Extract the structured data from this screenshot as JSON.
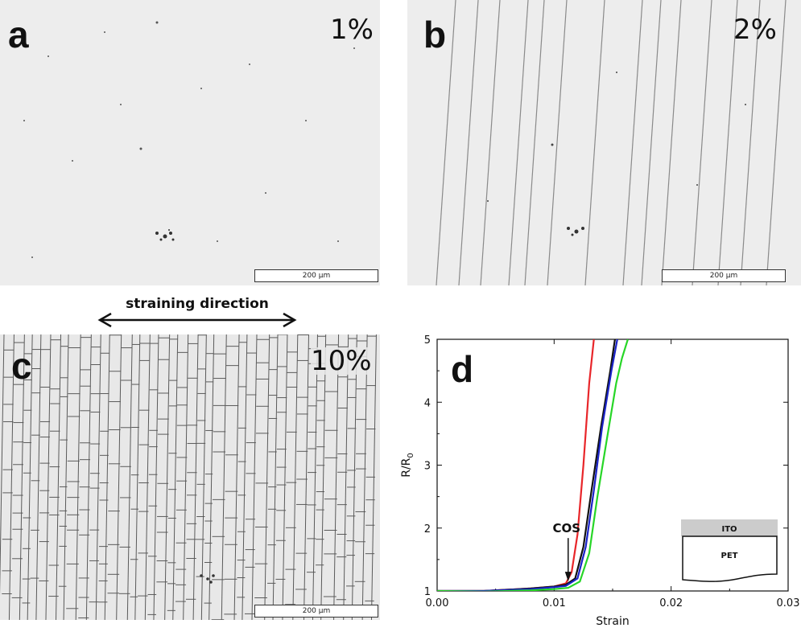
{
  "panels": {
    "a": {
      "letter": "a",
      "strain_label": "1%",
      "scalebar": "200 μm"
    },
    "b": {
      "letter": "b",
      "strain_label": "2%",
      "scalebar": "200 μm"
    },
    "c": {
      "letter": "c",
      "strain_label": "10%",
      "scalebar": "200 μm"
    },
    "d": {
      "letter": "d"
    }
  },
  "straining_direction": "straining direction",
  "inset": {
    "top_layer": "ITO",
    "bottom_layer": "PET"
  },
  "annotation": "COS",
  "colors": {
    "red": "#e8262a",
    "black": "#111111",
    "blue": "#1a23c8",
    "green": "#27d627"
  },
  "chart_data": {
    "type": "line",
    "xlabel": "Strain",
    "ylabel": "R/R",
    "ylabel_subscript": "0",
    "xlim": [
      0,
      0.03
    ],
    "ylim": [
      1,
      5
    ],
    "xticks": [
      "0.00",
      "0.01",
      "0.02",
      "0.03"
    ],
    "yticks": [
      "1",
      "2",
      "3",
      "4",
      "5"
    ],
    "series": [
      {
        "color": "red",
        "x": [
          0,
          0.004,
          0.008,
          0.01,
          0.011,
          0.0115,
          0.012,
          0.0125,
          0.013,
          0.0134
        ],
        "y": [
          1.0,
          1.0,
          1.04,
          1.07,
          1.12,
          1.3,
          1.9,
          3.0,
          4.3,
          5.0
        ]
      },
      {
        "color": "black",
        "x": [
          0,
          0.004,
          0.008,
          0.01,
          0.011,
          0.0118,
          0.0125,
          0.0132,
          0.014,
          0.0148,
          0.0152
        ],
        "y": [
          1.0,
          1.0,
          1.04,
          1.07,
          1.1,
          1.2,
          1.7,
          2.6,
          3.6,
          4.5,
          5.0
        ]
      },
      {
        "color": "blue",
        "x": [
          0,
          0.004,
          0.008,
          0.01,
          0.011,
          0.012,
          0.0127,
          0.0134,
          0.0141,
          0.0149,
          0.0154
        ],
        "y": [
          1.0,
          1.0,
          1.03,
          1.06,
          1.08,
          1.2,
          1.7,
          2.6,
          3.6,
          4.5,
          5.0
        ]
      },
      {
        "color": "green",
        "x": [
          0,
          0.004,
          0.008,
          0.01,
          0.0112,
          0.0122,
          0.013,
          0.0137,
          0.0145,
          0.0153,
          0.0158,
          0.0163
        ],
        "y": [
          1.0,
          0.99,
          1.01,
          1.03,
          1.05,
          1.15,
          1.6,
          2.5,
          3.4,
          4.3,
          4.7,
          5.0
        ]
      }
    ]
  }
}
